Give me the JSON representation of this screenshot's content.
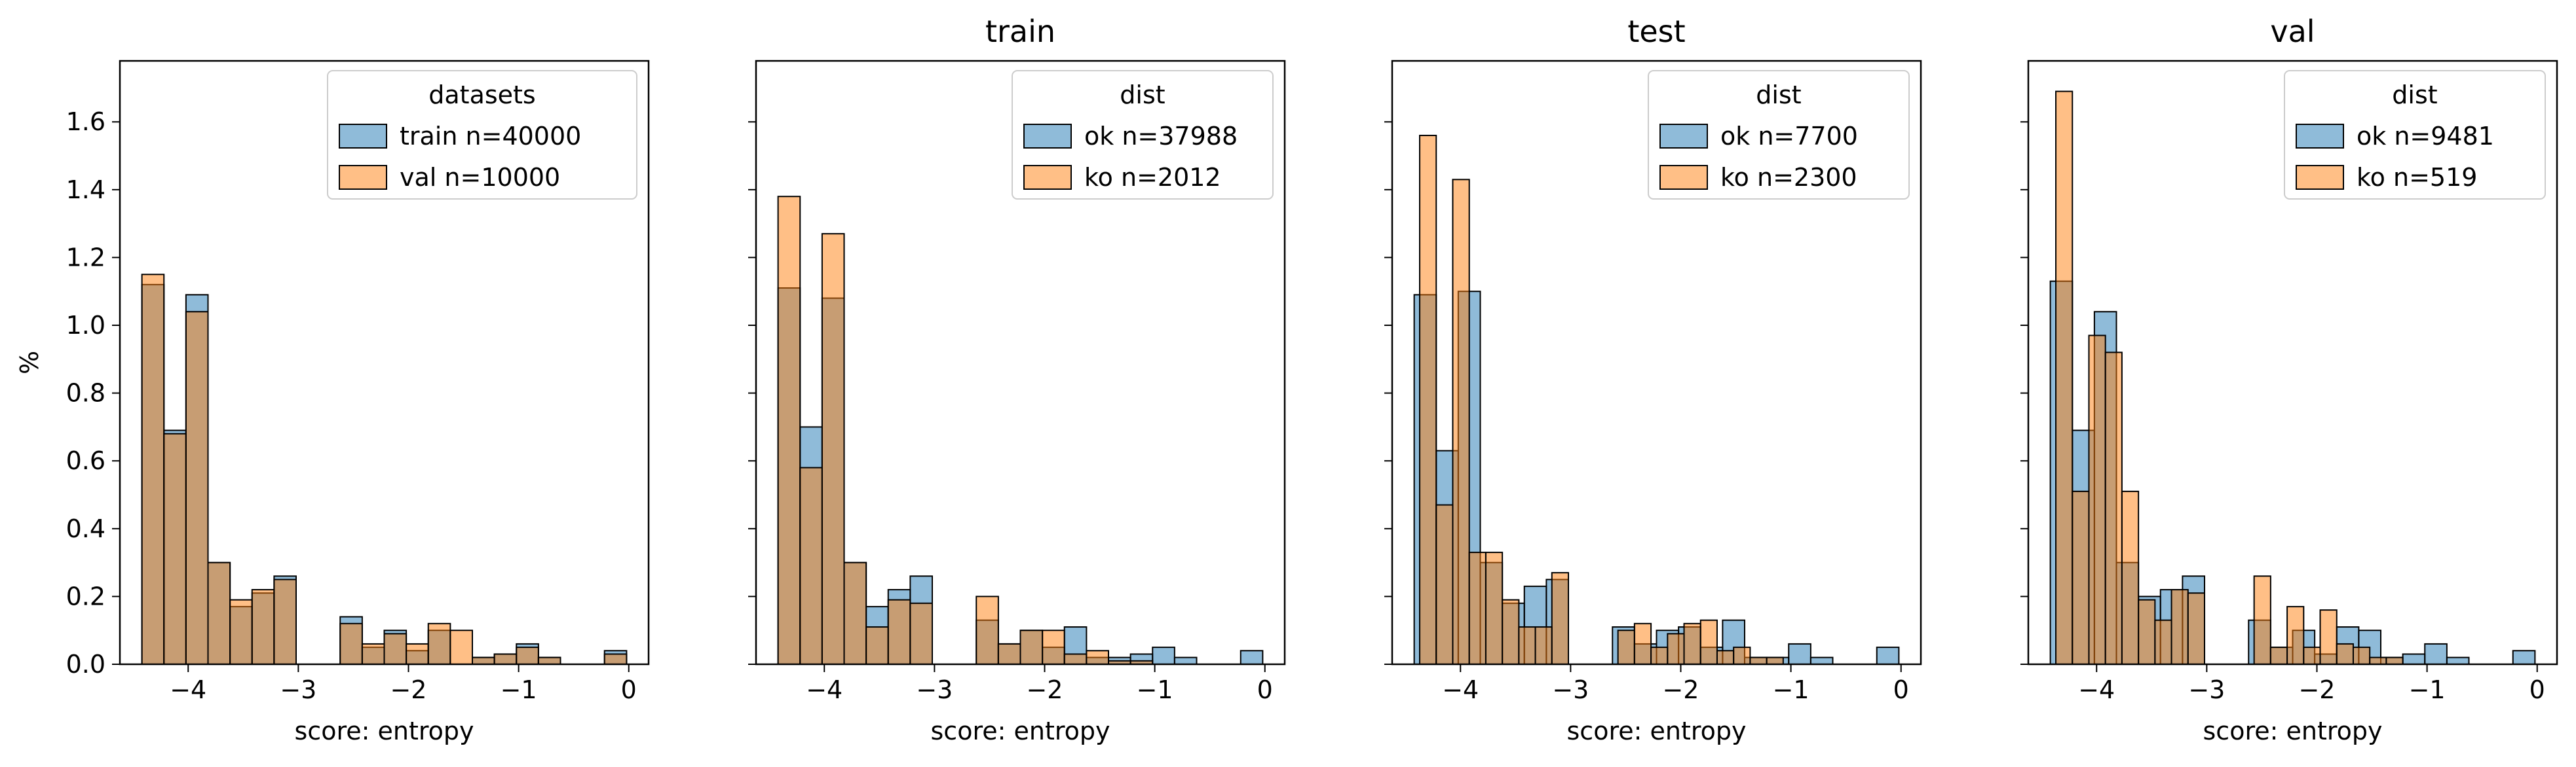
{
  "shared": {
    "ylabel": "%",
    "xlabel": "score: entropy",
    "ylim": [
      0,
      1.78
    ],
    "xlim": [
      -4.62,
      0.18
    ],
    "xticks": [
      -4,
      -3,
      -2,
      -1,
      0
    ],
    "xtick_labels": [
      "−4",
      "−3",
      "−2",
      "−1",
      "0"
    ],
    "yticks": [
      0.0,
      0.2,
      0.4,
      0.6,
      0.8,
      1.0,
      1.2,
      1.4,
      1.6
    ],
    "ytick_labels": [
      "0.0",
      "0.2",
      "0.4",
      "0.6",
      "0.8",
      "1.0",
      "1.2",
      "1.4",
      "1.6"
    ]
  },
  "colors": {
    "blue": "#1f77b4",
    "orange": "#ff7f0e",
    "overlap": "#b98e6a",
    "alpha": 0.5
  },
  "chart_data": [
    {
      "type": "bar",
      "title": "",
      "legend_title": "datasets",
      "legend_position": "top-right",
      "grid": false,
      "series": [
        {
          "name": "train n=40000",
          "color": "blue",
          "bins": [
            [
              -4.42,
              -4.22,
              1.12
            ],
            [
              -4.22,
              -4.02,
              0.69
            ],
            [
              -4.02,
              -3.82,
              1.09
            ],
            [
              -3.82,
              -3.62,
              0.3
            ],
            [
              -3.62,
              -3.42,
              0.17
            ],
            [
              -3.42,
              -3.22,
              0.21
            ],
            [
              -3.22,
              -3.02,
              0.26
            ],
            [
              -2.62,
              -2.42,
              0.14
            ],
            [
              -2.42,
              -2.22,
              0.05
            ],
            [
              -2.22,
              -2.02,
              0.1
            ],
            [
              -2.02,
              -1.82,
              0.04
            ],
            [
              -1.82,
              -1.62,
              0.1
            ],
            [
              -1.42,
              -1.22,
              0.02
            ],
            [
              -1.22,
              -1.02,
              0.03
            ],
            [
              -1.02,
              -0.82,
              0.06
            ],
            [
              -0.82,
              -0.62,
              0.02
            ],
            [
              -0.22,
              -0.02,
              0.04
            ]
          ]
        },
        {
          "name": "val n=10000",
          "color": "orange",
          "bins": [
            [
              -4.42,
              -4.22,
              1.15
            ],
            [
              -4.22,
              -4.02,
              0.68
            ],
            [
              -4.02,
              -3.82,
              1.04
            ],
            [
              -3.82,
              -3.62,
              0.3
            ],
            [
              -3.62,
              -3.42,
              0.19
            ],
            [
              -3.42,
              -3.22,
              0.22
            ],
            [
              -3.22,
              -3.02,
              0.25
            ],
            [
              -2.62,
              -2.42,
              0.12
            ],
            [
              -2.42,
              -2.22,
              0.06
            ],
            [
              -2.22,
              -2.02,
              0.09
            ],
            [
              -2.02,
              -1.82,
              0.06
            ],
            [
              -1.82,
              -1.62,
              0.12
            ],
            [
              -1.62,
              -1.42,
              0.1
            ],
            [
              -1.42,
              -1.22,
              0.02
            ],
            [
              -1.22,
              -1.02,
              0.03
            ],
            [
              -1.02,
              -0.82,
              0.05
            ],
            [
              -0.82,
              -0.62,
              0.02
            ],
            [
              -0.22,
              -0.02,
              0.03
            ]
          ]
        }
      ]
    },
    {
      "type": "bar",
      "title": "train",
      "legend_title": "dist",
      "legend_position": "top-right",
      "grid": false,
      "series": [
        {
          "name": "ok n=37988",
          "color": "blue",
          "bins": [
            [
              -4.42,
              -4.22,
              1.11
            ],
            [
              -4.22,
              -4.02,
              0.7
            ],
            [
              -4.02,
              -3.82,
              1.08
            ],
            [
              -3.82,
              -3.62,
              0.3
            ],
            [
              -3.62,
              -3.42,
              0.17
            ],
            [
              -3.42,
              -3.22,
              0.22
            ],
            [
              -3.22,
              -3.02,
              0.26
            ],
            [
              -2.62,
              -2.42,
              0.13
            ],
            [
              -2.42,
              -2.22,
              0.06
            ],
            [
              -2.22,
              -2.02,
              0.1
            ],
            [
              -2.02,
              -1.82,
              0.05
            ],
            [
              -1.82,
              -1.62,
              0.11
            ],
            [
              -1.62,
              -1.42,
              0.02
            ],
            [
              -1.42,
              -1.22,
              0.02
            ],
            [
              -1.22,
              -1.02,
              0.03
            ],
            [
              -1.02,
              -0.82,
              0.05
            ],
            [
              -0.82,
              -0.62,
              0.02
            ],
            [
              -0.22,
              -0.02,
              0.04
            ]
          ]
        },
        {
          "name": "ko n=2012",
          "color": "orange",
          "bins": [
            [
              -4.42,
              -4.22,
              1.38
            ],
            [
              -4.22,
              -4.02,
              0.58
            ],
            [
              -4.02,
              -3.82,
              1.27
            ],
            [
              -3.82,
              -3.62,
              0.3
            ],
            [
              -3.62,
              -3.42,
              0.11
            ],
            [
              -3.42,
              -3.22,
              0.19
            ],
            [
              -3.22,
              -3.02,
              0.18
            ],
            [
              -2.62,
              -2.42,
              0.2
            ],
            [
              -2.42,
              -2.22,
              0.06
            ],
            [
              -2.22,
              -2.02,
              0.1
            ],
            [
              -2.02,
              -1.82,
              0.1
            ],
            [
              -1.82,
              -1.62,
              0.03
            ],
            [
              -1.62,
              -1.42,
              0.04
            ],
            [
              -1.42,
              -1.22,
              0.01
            ],
            [
              -1.22,
              -1.02,
              0.01
            ]
          ]
        }
      ]
    },
    {
      "type": "bar",
      "title": "test",
      "legend_title": "dist",
      "legend_position": "top-right",
      "grid": false,
      "series": [
        {
          "name": "ok n=7700",
          "color": "blue",
          "bins": [
            [
              -4.42,
              -4.22,
              1.09
            ],
            [
              -4.22,
              -4.02,
              0.63
            ],
            [
              -4.02,
              -3.82,
              1.1
            ],
            [
              -3.82,
              -3.62,
              0.3
            ],
            [
              -3.62,
              -3.42,
              0.18
            ],
            [
              -3.42,
              -3.22,
              0.23
            ],
            [
              -3.22,
              -3.02,
              0.25
            ],
            [
              -2.62,
              -2.42,
              0.11
            ],
            [
              -2.42,
              -2.22,
              0.06
            ],
            [
              -2.22,
              -2.02,
              0.1
            ],
            [
              -2.02,
              -1.82,
              0.11
            ],
            [
              -1.82,
              -1.62,
              0.05
            ],
            [
              -1.62,
              -1.42,
              0.13
            ],
            [
              -1.42,
              -1.22,
              0.02
            ],
            [
              -1.22,
              -1.02,
              0.02
            ],
            [
              -1.02,
              -0.82,
              0.06
            ],
            [
              -0.82,
              -0.62,
              0.02
            ],
            [
              -0.22,
              -0.02,
              0.05
            ]
          ]
        },
        {
          "name": "ko n=2300",
          "color": "orange",
          "bins": [
            [
              -4.37,
              -4.22,
              1.56
            ],
            [
              -4.22,
              -4.07,
              0.47
            ],
            [
              -4.07,
              -3.92,
              1.43
            ],
            [
              -3.92,
              -3.77,
              0.33
            ],
            [
              -3.77,
              -3.62,
              0.33
            ],
            [
              -3.62,
              -3.47,
              0.19
            ],
            [
              -3.47,
              -3.32,
              0.11
            ],
            [
              -3.32,
              -3.17,
              0.11
            ],
            [
              -3.17,
              -3.02,
              0.27
            ],
            [
              -2.57,
              -2.42,
              0.1
            ],
            [
              -2.42,
              -2.27,
              0.12
            ],
            [
              -2.27,
              -2.12,
              0.05
            ],
            [
              -2.12,
              -1.97,
              0.09
            ],
            [
              -1.97,
              -1.82,
              0.12
            ],
            [
              -1.82,
              -1.67,
              0.13
            ],
            [
              -1.67,
              -1.52,
              0.04
            ],
            [
              -1.52,
              -1.37,
              0.05
            ],
            [
              -1.37,
              -1.22,
              0.02
            ],
            [
              -1.22,
              -1.07,
              0.02
            ]
          ]
        }
      ]
    },
    {
      "type": "bar",
      "title": "val",
      "legend_title": "dist",
      "legend_position": "top-right",
      "grid": false,
      "series": [
        {
          "name": "ok n=9481",
          "color": "blue",
          "bins": [
            [
              -4.42,
              -4.22,
              1.13
            ],
            [
              -4.22,
              -4.02,
              0.69
            ],
            [
              -4.02,
              -3.82,
              1.04
            ],
            [
              -3.82,
              -3.62,
              0.3
            ],
            [
              -3.62,
              -3.42,
              0.2
            ],
            [
              -3.42,
              -3.22,
              0.22
            ],
            [
              -3.22,
              -3.02,
              0.26
            ],
            [
              -2.62,
              -2.42,
              0.13
            ],
            [
              -2.42,
              -2.22,
              0.05
            ],
            [
              -2.22,
              -2.02,
              0.1
            ],
            [
              -2.02,
              -1.82,
              0.03
            ],
            [
              -1.82,
              -1.62,
              0.11
            ],
            [
              -1.62,
              -1.42,
              0.1
            ],
            [
              -1.42,
              -1.22,
              0.02
            ],
            [
              -1.22,
              -1.02,
              0.03
            ],
            [
              -1.02,
              -0.82,
              0.06
            ],
            [
              -0.82,
              -0.62,
              0.02
            ],
            [
              -0.22,
              -0.02,
              0.04
            ]
          ]
        },
        {
          "name": "ko n=519",
          "color": "orange",
          "bins": [
            [
              -4.37,
              -4.22,
              1.69
            ],
            [
              -4.22,
              -4.07,
              0.51
            ],
            [
              -4.07,
              -3.92,
              0.97
            ],
            [
              -3.92,
              -3.77,
              0.92
            ],
            [
              -3.77,
              -3.62,
              0.51
            ],
            [
              -3.62,
              -3.47,
              0.19
            ],
            [
              -3.47,
              -3.32,
              0.13
            ],
            [
              -3.32,
              -3.17,
              0.22
            ],
            [
              -3.17,
              -3.02,
              0.21
            ],
            [
              -2.57,
              -2.42,
              0.26
            ],
            [
              -2.42,
              -2.27,
              0.05
            ],
            [
              -2.27,
              -2.12,
              0.17
            ],
            [
              -2.12,
              -1.97,
              0.05
            ],
            [
              -1.97,
              -1.82,
              0.16
            ],
            [
              -1.82,
              -1.67,
              0.06
            ],
            [
              -1.67,
              -1.52,
              0.05
            ],
            [
              -1.52,
              -1.37,
              0.02
            ],
            [
              -1.37,
              -1.22,
              0.02
            ]
          ]
        }
      ]
    }
  ]
}
